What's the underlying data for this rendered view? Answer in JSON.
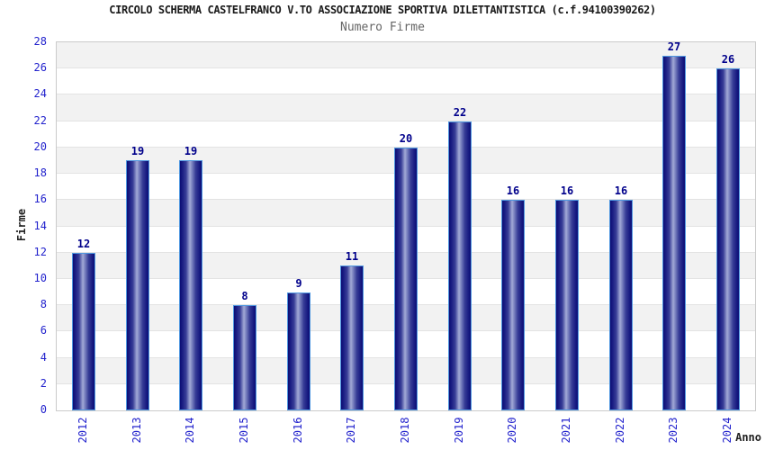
{
  "header": {
    "title": "CIRCOLO SCHERMA CASTELFRANCO V.TO ASSOCIAZIONE SPORTIVA DILETTANTISTICA (c.f.94100390262)",
    "subtitle": "Numero Firme"
  },
  "chart_data": {
    "type": "bar",
    "title": "CIRCOLO SCHERMA CASTELFRANCO V.TO ASSOCIAZIONE SPORTIVA DILETTANTISTICA (c.f.94100390262)",
    "subtitle": "Numero Firme",
    "categories": [
      "2012",
      "2013",
      "2014",
      "2015",
      "2016",
      "2017",
      "2018",
      "2019",
      "2020",
      "2021",
      "2022",
      "2023",
      "2024"
    ],
    "values": [
      12,
      19,
      19,
      8,
      9,
      11,
      20,
      22,
      16,
      16,
      16,
      27,
      26
    ],
    "xlabel": "Anno",
    "ylabel": "Firme",
    "ylim": [
      0,
      28
    ],
    "ytick_step": 2,
    "yticks": [
      0,
      2,
      4,
      6,
      8,
      10,
      12,
      14,
      16,
      18,
      20,
      22,
      24,
      26,
      28
    ],
    "grid": true,
    "legend_position": "none",
    "colors": {
      "bar_border": "#4f97e0",
      "bar_dark": "#0b0d74",
      "bar_light": "#a2a9d6",
      "value_label": "#00008b",
      "tick_label": "#2323cd",
      "band_gray": "#f2f2f2",
      "band_white": "#ffffff",
      "grid_line": "#e3e3e3",
      "plot_border": "#cbcbcb",
      "title_color": "#1a1a1a",
      "subtitle_color": "#666666",
      "axis_title_color": "#222222"
    }
  }
}
